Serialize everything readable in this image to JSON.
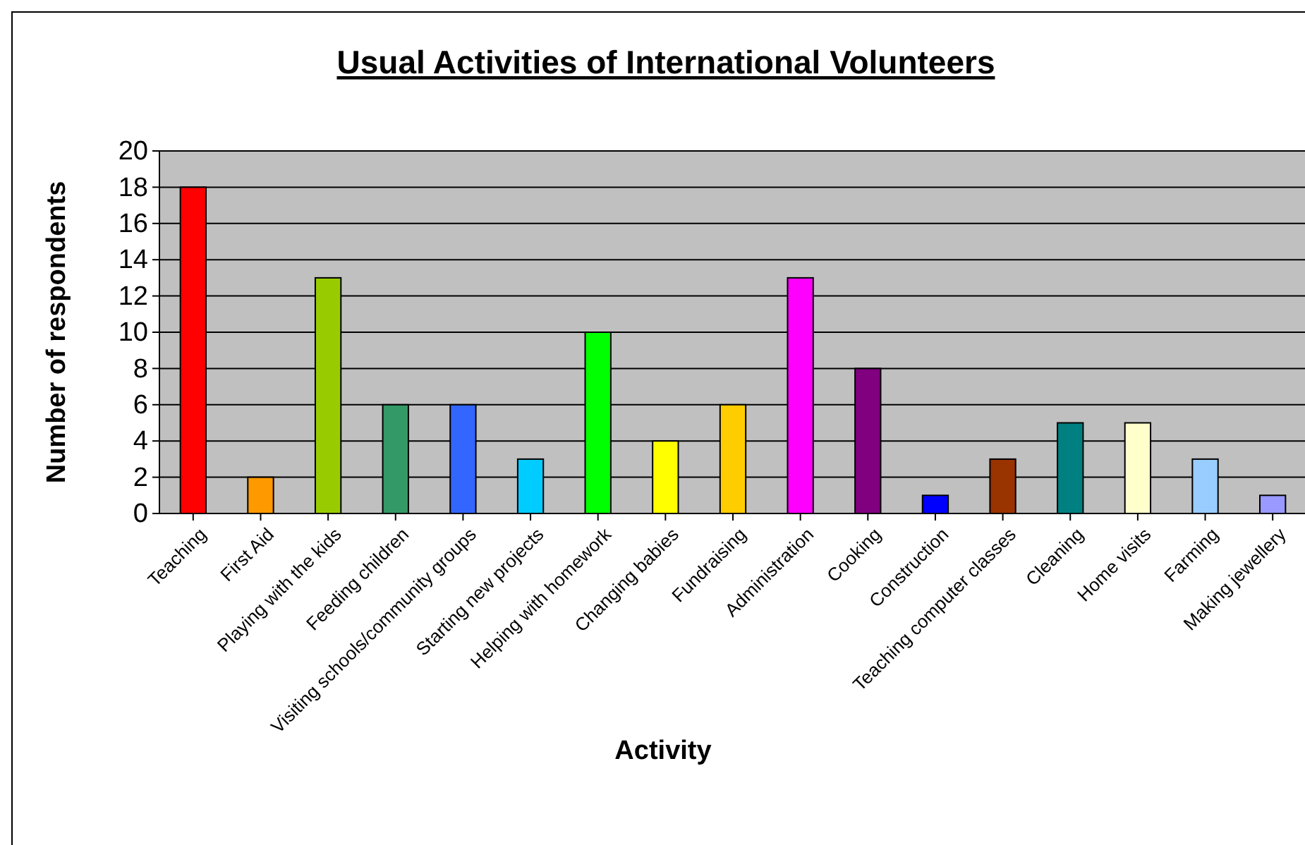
{
  "chart_data": {
    "type": "bar",
    "title": "Usual Activities of International Volunteers",
    "xlabel": "Activity",
    "ylabel": "Number of respondents",
    "categories": [
      "Teaching",
      "First Aid",
      "Playing with the kids",
      "Feeding children",
      "Visiting schools/community groups",
      "Starting new projects",
      "Helping with homework",
      "Changing babies",
      "Fundraising",
      "Administration",
      "Cooking",
      "Construction",
      "Teaching computer classes",
      "Cleaning",
      "Home visits",
      "Farming",
      "Making jewellery"
    ],
    "values": [
      18,
      2,
      13,
      6,
      6,
      3,
      10,
      4,
      6,
      13,
      8,
      1,
      3,
      5,
      5,
      3,
      1
    ],
    "colors": [
      "#ff0000",
      "#ff9900",
      "#99cc00",
      "#339966",
      "#3366ff",
      "#00ccff",
      "#00ff00",
      "#ffff00",
      "#ffcc00",
      "#ff00ff",
      "#800080",
      "#0000ff",
      "#993300",
      "#008080",
      "#ffffcc",
      "#99ccff",
      "#9999ff"
    ],
    "ylim": [
      0,
      20
    ],
    "yticks": [
      0,
      2,
      4,
      6,
      8,
      10,
      12,
      14,
      16,
      18,
      20
    ],
    "grid": "y"
  }
}
